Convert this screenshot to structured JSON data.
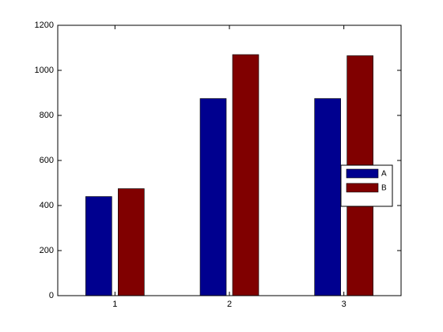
{
  "chart_data": {
    "type": "bar",
    "categories": [
      "1",
      "2",
      "3"
    ],
    "series": [
      {
        "name": "A",
        "color": "#00008f",
        "values": [
          440,
          875,
          875
        ]
      },
      {
        "name": "B",
        "color": "#800000",
        "values": [
          475,
          1070,
          1065
        ]
      }
    ],
    "ylim": [
      0,
      1200
    ],
    "yticks": [
      0,
      200,
      400,
      600,
      800,
      1000,
      1200
    ],
    "grid": false,
    "legend": "east"
  }
}
